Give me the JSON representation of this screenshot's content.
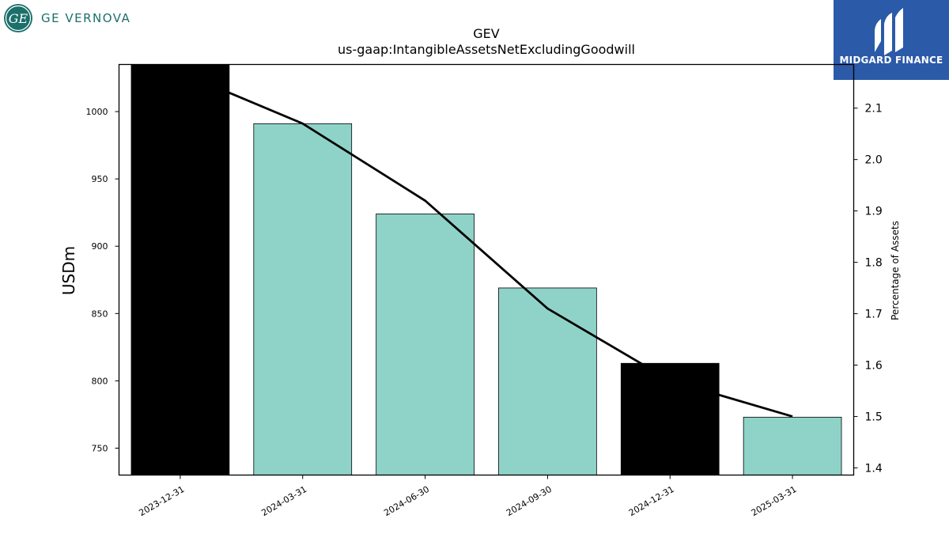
{
  "brand": {
    "company_name": "GE VERNOVA",
    "company_logo_icon": "ge-monogram-icon",
    "watermark_name": "MIDGARD FINANCE",
    "watermark_icon": "midgard-mark-icon",
    "company_color": "#1c6f6a",
    "watermark_bg": "#2b5aa8"
  },
  "chart_data": {
    "type": "bar",
    "title": "GEV",
    "subtitle": "us-gaap:IntangibleAssetsNetExcludingGoodwill",
    "categories": [
      "2023-12-31",
      "2024-03-31",
      "2024-06-30",
      "2024-09-30",
      "2024-12-31",
      "2025-03-31"
    ],
    "series": [
      {
        "type": "bar",
        "axis": "left",
        "values": [
          1035,
          991,
          924,
          869,
          813,
          773
        ],
        "colors": [
          "#000000",
          "#8fd3c8",
          "#8fd3c8",
          "#8fd3c8",
          "#000000",
          "#8fd3c8"
        ]
      },
      {
        "type": "line",
        "axis": "right",
        "values": [
          2.17,
          2.07,
          1.92,
          1.71,
          1.57,
          1.5
        ],
        "color": "#000000"
      }
    ],
    "ylabel": "USDm",
    "y2label": "Percentage of Assets",
    "ylim": [
      730,
      1035
    ],
    "y2lim": [
      1.386,
      2.185
    ],
    "yticks": [
      750,
      800,
      850,
      900,
      950,
      1000
    ],
    "y2ticks": [
      1.4,
      1.5,
      1.6,
      1.7,
      1.8,
      1.9,
      2.0,
      2.1
    ],
    "grid": false
  }
}
